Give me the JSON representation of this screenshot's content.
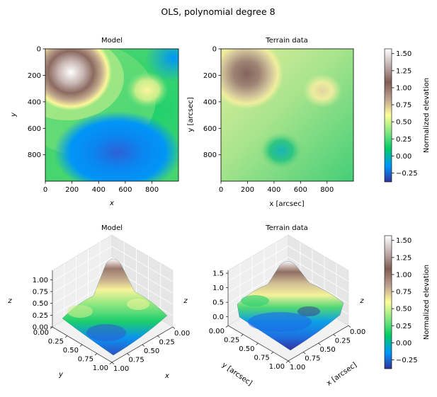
{
  "suptitle": "OLS, polynomial degree 8",
  "colors": {
    "colormap": "terrain",
    "stops": [
      "#333399",
      "#0094fa",
      "#01cc66",
      "#80e680",
      "#ffff99",
      "#bfa38f",
      "#805c54",
      "#bfadaa",
      "#ffffff"
    ]
  },
  "chart_data": [
    {
      "type": "heatmap",
      "title": "Model",
      "xlabel": "x",
      "ylabel": "y",
      "xlim": [
        0,
        999
      ],
      "ylim": [
        999,
        0
      ],
      "xticks": [
        "0",
        "200",
        "400",
        "600",
        "800"
      ],
      "yticks": [
        "0",
        "200",
        "400",
        "600",
        "800"
      ],
      "features": [
        {
          "x": 200,
          "y": 180,
          "value": 1.55,
          "kind": "peak"
        },
        {
          "x": 760,
          "y": 300,
          "value": 0.55,
          "kind": "peak"
        },
        {
          "x": 500,
          "y": 780,
          "value": -0.25,
          "kind": "basin"
        },
        {
          "x": 950,
          "y": 50,
          "value": -0.05,
          "kind": "basin"
        }
      ]
    },
    {
      "type": "heatmap",
      "title": "Terrain data",
      "xlabel": "x [arcsec]",
      "ylabel": "y [arcsec]",
      "xlim": [
        0,
        999
      ],
      "ylim": [
        999,
        0
      ],
      "xticks": [
        "0",
        "200",
        "400",
        "600",
        "800"
      ],
      "yticks": [
        "0",
        "200",
        "400",
        "600",
        "800"
      ],
      "features": [
        {
          "x": 200,
          "y": 190,
          "value": 1.2,
          "kind": "peak"
        },
        {
          "x": 760,
          "y": 320,
          "value": 0.65,
          "kind": "peak"
        },
        {
          "x": 460,
          "y": 770,
          "value": 0.0,
          "kind": "basin"
        }
      ]
    },
    {
      "type": "surface3d",
      "title": "Model",
      "xlabel": "x",
      "ylabel": "y",
      "zlabel": "z",
      "xticks": [
        "0.00",
        "0.25",
        "0.50",
        "0.75",
        "1.00"
      ],
      "yticks": [
        "0.00",
        "0.25",
        "0.50",
        "0.75",
        "1.00"
      ],
      "zticks": [
        "0.00",
        "0.25",
        "0.50",
        "0.75",
        "1.00"
      ],
      "zlim": [
        0,
        1.2
      ]
    },
    {
      "type": "surface3d",
      "title": "Terrain data",
      "xlabel": "x [arcsec]",
      "ylabel": "y [arcsec]",
      "zlabel": "z",
      "xticks": [
        "0.00",
        "0.25",
        "0.50",
        "0.75",
        "1.00"
      ],
      "yticks": [
        "0.00",
        "0.25",
        "0.50",
        "0.75",
        "1.00"
      ],
      "zticks": [
        "0.0",
        "0.5",
        "1.0",
        "1.5"
      ],
      "zlim": [
        -0.3,
        1.6
      ]
    }
  ],
  "colorbars": [
    {
      "label": "Normalized elevation",
      "ticks": [
        "1.50",
        "1.25",
        "1.00",
        "0.75",
        "0.50",
        "0.25",
        "0.00",
        "−0.25"
      ],
      "range": [
        -0.38,
        1.57
      ]
    },
    {
      "label": "Normalized elevation",
      "ticks": [
        "1.50",
        "1.25",
        "1.00",
        "0.75",
        "0.50",
        "0.25",
        "0.00",
        "−0.25"
      ],
      "range": [
        -0.38,
        1.57
      ]
    }
  ]
}
